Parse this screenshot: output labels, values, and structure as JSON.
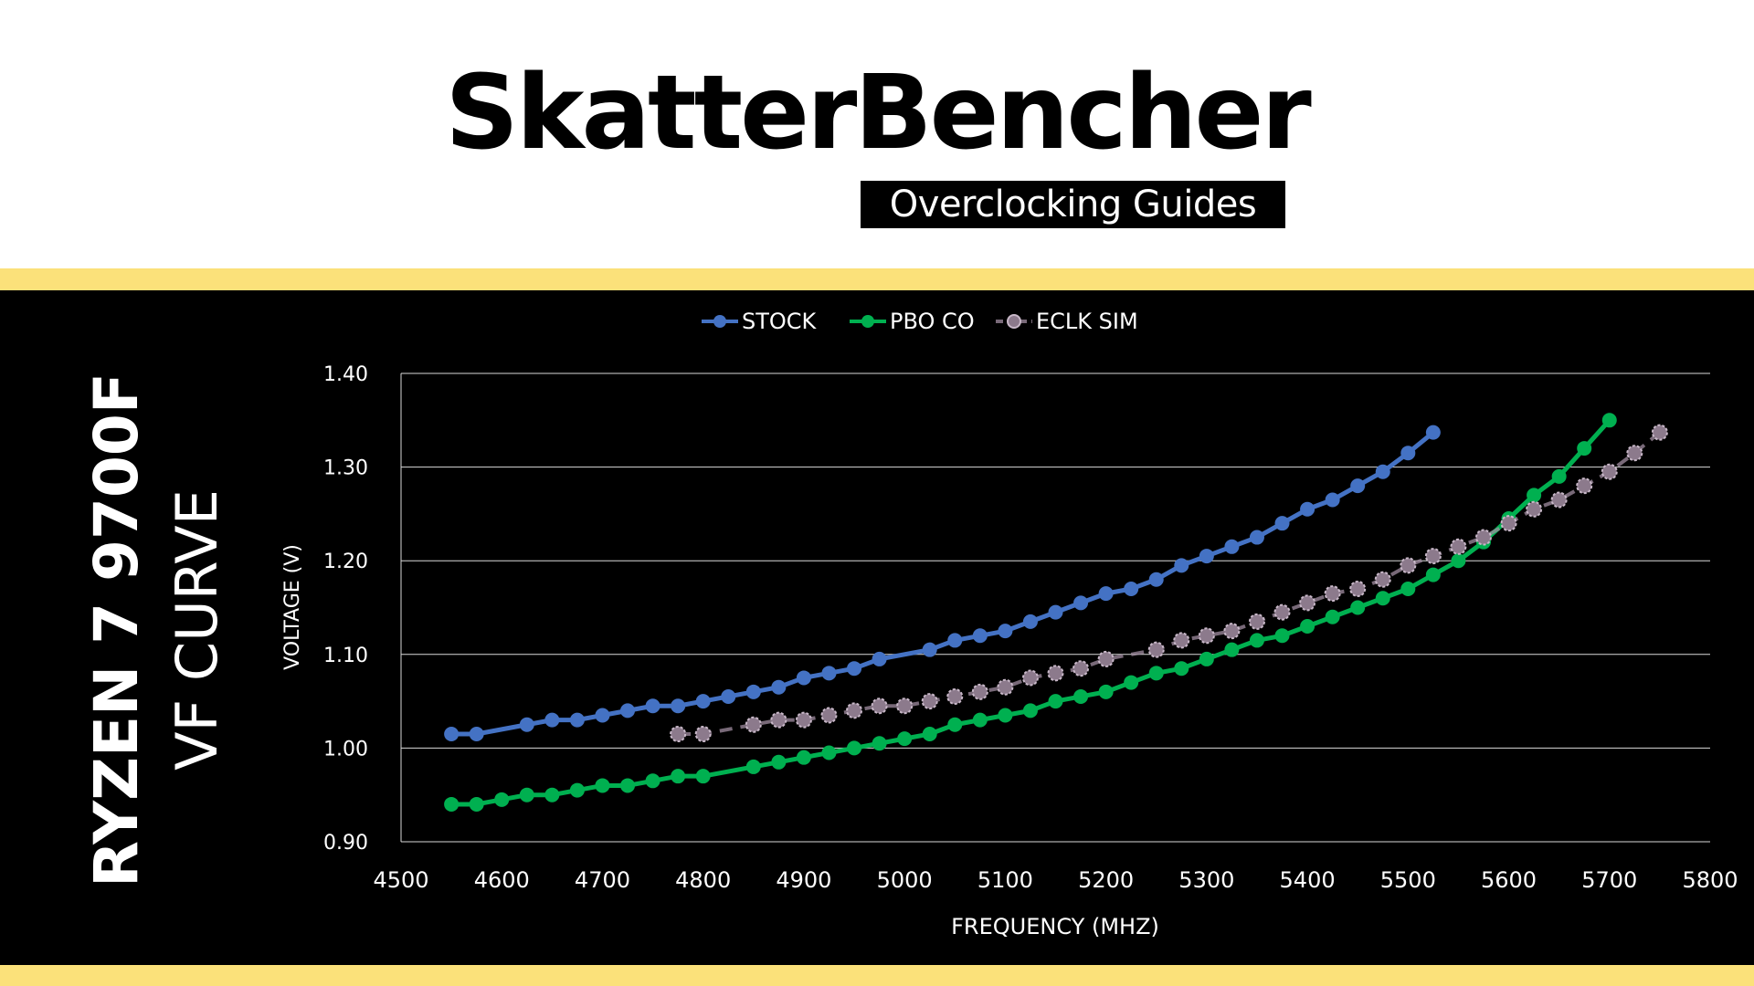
{
  "header": {
    "logo_title": "SkatterBencher",
    "logo_subtitle": "Overclocking Guides"
  },
  "side_title": {
    "line1": "RYZEN 7 9700F",
    "line2": "VF CURVE"
  },
  "colors": {
    "band": "#fbe17a",
    "background": "#000000",
    "grid": "#d9d9d9",
    "text": "#ffffff"
  },
  "chart_data": {
    "type": "line",
    "xlabel": "FREQUENCY (MHZ)",
    "ylabel": "VOLTAGE (V)",
    "xlim": [
      4500,
      5800
    ],
    "ylim": [
      0.9,
      1.4
    ],
    "x_ticks": [
      "4500",
      "4600",
      "4700",
      "4800",
      "4900",
      "5000",
      "5100",
      "5200",
      "5300",
      "5400",
      "5500",
      "5600",
      "5700",
      "5800"
    ],
    "y_ticks": [
      "0.90",
      "1.00",
      "1.10",
      "1.20",
      "1.30",
      "1.40"
    ],
    "grid": "horizontal",
    "legend_position": "top-center",
    "series": [
      {
        "name": "STOCK",
        "color": "#4472c4",
        "style": "solid",
        "points": [
          [
            4550,
            1.015
          ],
          [
            4575,
            1.015
          ],
          [
            4625,
            1.025
          ],
          [
            4650,
            1.03
          ],
          [
            4675,
            1.03
          ],
          [
            4700,
            1.035
          ],
          [
            4725,
            1.04
          ],
          [
            4750,
            1.045
          ],
          [
            4775,
            1.045
          ],
          [
            4800,
            1.05
          ],
          [
            4825,
            1.055
          ],
          [
            4850,
            1.06
          ],
          [
            4875,
            1.065
          ],
          [
            4900,
            1.075
          ],
          [
            4925,
            1.08
          ],
          [
            4950,
            1.085
          ],
          [
            4975,
            1.095
          ],
          [
            5025,
            1.105
          ],
          [
            5050,
            1.115
          ],
          [
            5075,
            1.12
          ],
          [
            5100,
            1.125
          ],
          [
            5125,
            1.135
          ],
          [
            5150,
            1.145
          ],
          [
            5175,
            1.155
          ],
          [
            5200,
            1.165
          ],
          [
            5225,
            1.17
          ],
          [
            5250,
            1.18
          ],
          [
            5275,
            1.195
          ],
          [
            5300,
            1.205
          ],
          [
            5325,
            1.215
          ],
          [
            5350,
            1.225
          ],
          [
            5375,
            1.24
          ],
          [
            5400,
            1.255
          ],
          [
            5425,
            1.265
          ],
          [
            5450,
            1.28
          ],
          [
            5475,
            1.295
          ],
          [
            5500,
            1.315
          ],
          [
            5525,
            1.337
          ]
        ]
      },
      {
        "name": "PBO CO",
        "color": "#00b050",
        "style": "solid",
        "points": [
          [
            4550,
            0.94
          ],
          [
            4575,
            0.94
          ],
          [
            4600,
            0.945
          ],
          [
            4625,
            0.95
          ],
          [
            4650,
            0.95
          ],
          [
            4675,
            0.955
          ],
          [
            4700,
            0.96
          ],
          [
            4725,
            0.96
          ],
          [
            4750,
            0.965
          ],
          [
            4775,
            0.97
          ],
          [
            4800,
            0.97
          ],
          [
            4850,
            0.98
          ],
          [
            4875,
            0.985
          ],
          [
            4900,
            0.99
          ],
          [
            4925,
            0.995
          ],
          [
            4950,
            1.0
          ],
          [
            4975,
            1.005
          ],
          [
            5000,
            1.01
          ],
          [
            5025,
            1.015
          ],
          [
            5050,
            1.025
          ],
          [
            5075,
            1.03
          ],
          [
            5100,
            1.035
          ],
          [
            5125,
            1.04
          ],
          [
            5150,
            1.05
          ],
          [
            5175,
            1.055
          ],
          [
            5200,
            1.06
          ],
          [
            5225,
            1.07
          ],
          [
            5250,
            1.08
          ],
          [
            5275,
            1.085
          ],
          [
            5300,
            1.095
          ],
          [
            5325,
            1.105
          ],
          [
            5350,
            1.115
          ],
          [
            5375,
            1.12
          ],
          [
            5400,
            1.13
          ],
          [
            5425,
            1.14
          ],
          [
            5450,
            1.15
          ],
          [
            5475,
            1.16
          ],
          [
            5500,
            1.17
          ],
          [
            5525,
            1.185
          ],
          [
            5550,
            1.2
          ],
          [
            5575,
            1.22
          ],
          [
            5600,
            1.245
          ],
          [
            5625,
            1.27
          ],
          [
            5650,
            1.29
          ],
          [
            5675,
            1.32
          ],
          [
            5700,
            1.35
          ]
        ]
      },
      {
        "name": "ECLK SIM",
        "color": "#a08ca0",
        "style": "dashed",
        "points": [
          [
            4775,
            1.015
          ],
          [
            4800,
            1.015
          ],
          [
            4850,
            1.025
          ],
          [
            4875,
            1.03
          ],
          [
            4900,
            1.03
          ],
          [
            4925,
            1.035
          ],
          [
            4950,
            1.04
          ],
          [
            4975,
            1.045
          ],
          [
            5000,
            1.045
          ],
          [
            5025,
            1.05
          ],
          [
            5050,
            1.055
          ],
          [
            5075,
            1.06
          ],
          [
            5100,
            1.065
          ],
          [
            5125,
            1.075
          ],
          [
            5150,
            1.08
          ],
          [
            5175,
            1.085
          ],
          [
            5200,
            1.095
          ],
          [
            5250,
            1.105
          ],
          [
            5275,
            1.115
          ],
          [
            5300,
            1.12
          ],
          [
            5325,
            1.125
          ],
          [
            5350,
            1.135
          ],
          [
            5375,
            1.145
          ],
          [
            5400,
            1.155
          ],
          [
            5425,
            1.165
          ],
          [
            5450,
            1.17
          ],
          [
            5475,
            1.18
          ],
          [
            5500,
            1.195
          ],
          [
            5525,
            1.205
          ],
          [
            5550,
            1.215
          ],
          [
            5575,
            1.225
          ],
          [
            5600,
            1.24
          ],
          [
            5625,
            1.255
          ],
          [
            5650,
            1.265
          ],
          [
            5675,
            1.28
          ],
          [
            5700,
            1.295
          ],
          [
            5725,
            1.315
          ],
          [
            5750,
            1.337
          ]
        ]
      }
    ]
  }
}
